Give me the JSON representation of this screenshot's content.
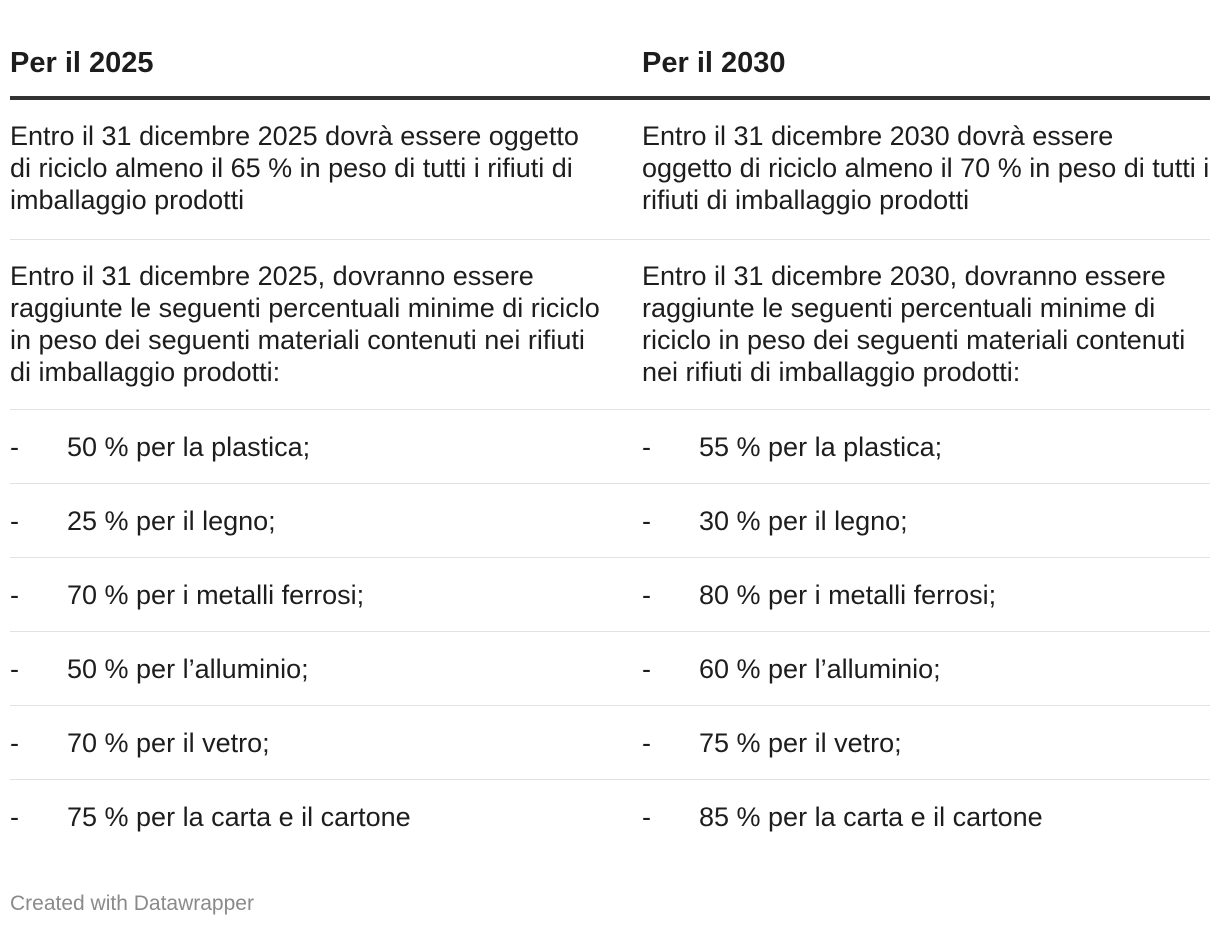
{
  "header": {
    "col1": "Per il 2025",
    "col2": "Per il 2030"
  },
  "rows": [
    {
      "col1": "Entro il 31 dicembre 2025 dovrà essere oggetto di riciclo almeno il 65 % in peso di tutti i rifiuti di imballaggio prodotti",
      "col2": "Entro il 31 dicembre 2030 dovrà essere oggetto di riciclo almeno il 70 % in peso di tutti i rifiuti di imballaggio prodotti"
    },
    {
      "col1": "Entro il 31 dicembre 2025, dovranno essere raggiunte le seguenti percentuali minime di riciclo in peso dei seguenti materiali contenuti nei rifiuti di imballaggio prodotti:",
      "col2": "Entro il 31 dicembre 2030, dovranno essere raggiunte le seguenti percentuali minime di riciclo in peso dei seguenti materiali contenuti nei rifiuti di imballaggio prodotti:"
    }
  ],
  "items": [
    {
      "dash": "-",
      "col1": "50 % per la plastica;",
      "col2": "55 % per la plastica;"
    },
    {
      "dash": "-",
      "col1": "25 % per il legno;",
      "col2": "30 % per il legno;"
    },
    {
      "dash": "-",
      "col1": "70 % per i metalli ferrosi;",
      "col2": "80 % per i metalli ferrosi;"
    },
    {
      "dash": "-",
      "col1": "50 % per l’alluminio;",
      "col2": "60 % per l’alluminio;"
    },
    {
      "dash": "-",
      "col1": "70 % per il vetro;",
      "col2": "75 % per il vetro;"
    },
    {
      "dash": "-",
      "col1": "75 % per la carta e il cartone",
      "col2": "85 % per la carta e il cartone"
    }
  ],
  "footer": {
    "credit": "Created with Datawrapper"
  }
}
